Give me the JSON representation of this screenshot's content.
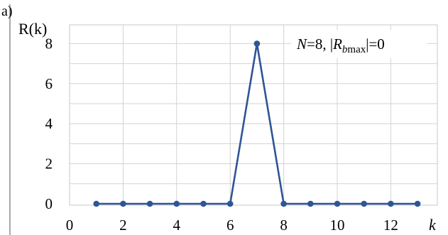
{
  "panel_label": "a)",
  "chart_data": {
    "type": "line",
    "ylabel": "R(k)",
    "xlabel": "k",
    "xlim": [
      0,
      14
    ],
    "ylim": [
      0,
      9
    ],
    "x_ticks": [
      0,
      2,
      4,
      6,
      8,
      10,
      12
    ],
    "x_tick_labels": [
      "0",
      "2",
      "4",
      "6",
      "8",
      "10",
      "12"
    ],
    "y_ticks": [
      0,
      2,
      4,
      6,
      8
    ],
    "y_tick_labels": [
      "0",
      "2",
      "4",
      "6",
      "8"
    ],
    "grid": true,
    "annotation": {
      "n_part": "N=8, |R",
      "sub_b": "b",
      "sub_max": "max",
      "tail": "|=0"
    },
    "series": [
      {
        "color": "#2e5597",
        "x": [
          1,
          2,
          3,
          4,
          5,
          6,
          7,
          8,
          9,
          10,
          11,
          12,
          13
        ],
        "y": [
          0,
          0,
          0,
          0,
          0,
          0,
          8,
          0,
          0,
          0,
          0,
          0,
          0
        ]
      }
    ]
  }
}
